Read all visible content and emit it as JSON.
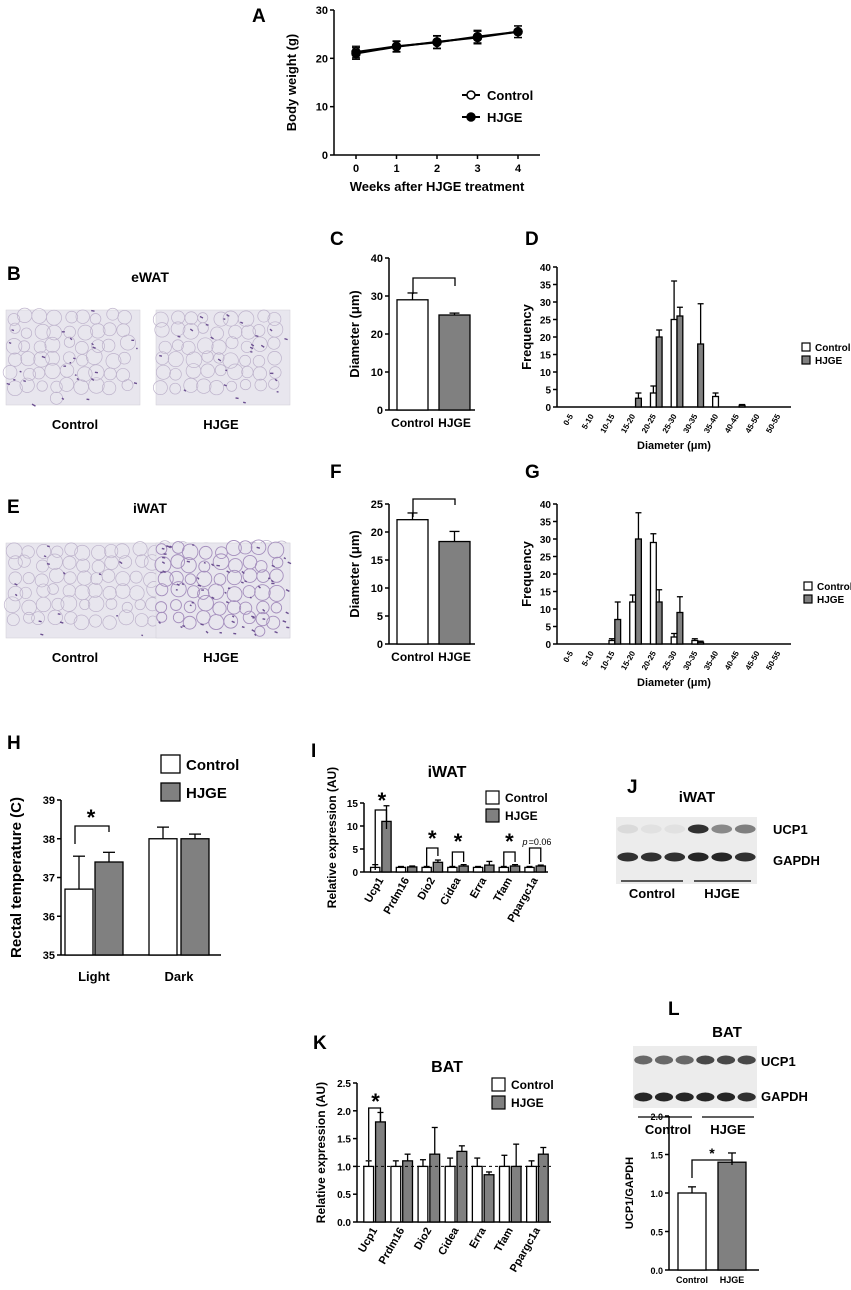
{
  "colors": {
    "control": "#ffffff",
    "hjge": "#808080",
    "axis": "#000000",
    "micro_bg": "#e8e6ee",
    "blot_bg": "#ececec"
  },
  "panels": {
    "A": {
      "letter": "A"
    },
    "B": {
      "letter": "B",
      "title": "eWAT",
      "left_label": "Control",
      "right_label": "HJGE"
    },
    "C": {
      "letter": "C"
    },
    "D": {
      "letter": "D"
    },
    "E": {
      "letter": "E",
      "title": "iWAT",
      "left_label": "Control",
      "right_label": "HJGE"
    },
    "F": {
      "letter": "F"
    },
    "G": {
      "letter": "G"
    },
    "H": {
      "letter": "H"
    },
    "I": {
      "letter": "I"
    },
    "J": {
      "letter": "J",
      "title": "iWAT",
      "band1": "UCP1",
      "band2": "GAPDH",
      "group1": "Control",
      "group2": "HJGE"
    },
    "K": {
      "letter": "K"
    },
    "L": {
      "letter": "L",
      "title": "BAT",
      "band1": "UCP1",
      "band2": "GAPDH",
      "group1": "Control",
      "group2": "HJGE"
    }
  },
  "chart_data": [
    {
      "id": "A",
      "type": "line",
      "xlabel": "Weeks after HJGE treatment",
      "ylabel": "Body weight (g)",
      "x": [
        0,
        1,
        2,
        3,
        4
      ],
      "xticks": [
        "0",
        "1",
        "2",
        "3",
        "4"
      ],
      "ylim": [
        0,
        30
      ],
      "yticks": [
        "0",
        "10",
        "20",
        "30"
      ],
      "series": [
        {
          "name": "Control",
          "values": [
            21.3,
            22.5,
            23.3,
            24.5,
            25.5
          ],
          "errors": [
            1.2,
            1.1,
            1.3,
            1.3,
            1.2
          ]
        },
        {
          "name": "HJGE",
          "values": [
            21.0,
            22.4,
            23.4,
            24.3,
            25.5
          ],
          "errors": [
            1.2,
            1.1,
            1.3,
            1.3,
            1.2
          ]
        }
      ],
      "legend": "right"
    },
    {
      "id": "C",
      "type": "bar",
      "ylabel": "Diameter (μm)",
      "categories": [
        "Control",
        "HJGE"
      ],
      "values": [
        29,
        25
      ],
      "errors": [
        1.8,
        0.5
      ],
      "ylim": [
        0,
        40
      ],
      "yticks": [
        "0",
        "10",
        "20",
        "30",
        "40"
      ],
      "sig": "*"
    },
    {
      "id": "D",
      "type": "bar",
      "xlabel": "Diameter (μm)",
      "ylabel": "Frequency",
      "categories": [
        "0-5",
        "5-10",
        "10-15",
        "15-20",
        "20-25",
        "25-30",
        "30-35",
        "35-40",
        "40-45",
        "45-50",
        "50-55"
      ],
      "ylim": [
        0,
        40
      ],
      "yticks": [
        "0",
        "5",
        "10",
        "15",
        "20",
        "25",
        "30",
        "35",
        "40"
      ],
      "series": [
        {
          "name": "Control",
          "values": [
            0,
            0,
            0,
            0,
            4,
            25,
            0,
            3,
            0,
            0,
            0
          ],
          "errors": [
            0,
            0,
            0,
            0,
            2,
            11,
            0,
            1,
            0,
            0,
            0
          ]
        },
        {
          "name": "HJGE",
          "values": [
            0,
            0,
            0,
            2.5,
            20,
            26,
            18,
            0,
            0.5,
            0,
            0
          ],
          "errors": [
            0,
            0,
            0,
            1.5,
            2,
            2.5,
            11.5,
            0,
            0.2,
            0,
            0
          ]
        }
      ],
      "legend": "right"
    },
    {
      "id": "F",
      "type": "bar",
      "ylabel": "Diameter (μm)",
      "categories": [
        "Control",
        "HJGE"
      ],
      "values": [
        22.2,
        18.3
      ],
      "errors": [
        1.2,
        1.8
      ],
      "ylim": [
        0,
        25
      ],
      "yticks": [
        "0",
        "5",
        "10",
        "15",
        "20",
        "25"
      ],
      "sig": "*"
    },
    {
      "id": "G",
      "type": "bar",
      "xlabel": "Diameter (μm)",
      "ylabel": "Frequency",
      "categories": [
        "0-5",
        "5-10",
        "10-15",
        "15-20",
        "20-25",
        "25-30",
        "30-35",
        "35-40",
        "40-45",
        "45-50",
        "50-55"
      ],
      "ylim": [
        0,
        40
      ],
      "yticks": [
        "0",
        "5",
        "10",
        "15",
        "20",
        "25",
        "30",
        "35",
        "40"
      ],
      "series": [
        {
          "name": "Control",
          "values": [
            0,
            0,
            1,
            12,
            29,
            2,
            1,
            0,
            0,
            0,
            0
          ],
          "errors": [
            0,
            0,
            0.5,
            2,
            2.5,
            1,
            0.5,
            0,
            0,
            0,
            0
          ]
        },
        {
          "name": "HJGE",
          "values": [
            0,
            0,
            7,
            30,
            12,
            9,
            0.5,
            0,
            0,
            0,
            0
          ],
          "errors": [
            0,
            0,
            5,
            7.5,
            3.5,
            4.5,
            0.3,
            0,
            0,
            0,
            0
          ]
        }
      ],
      "legend": "right"
    },
    {
      "id": "H",
      "type": "bar",
      "ylabel": "Rectal temperature (C)",
      "categories": [
        "Light",
        "Dark"
      ],
      "ylim": [
        35,
        39
      ],
      "yticks": [
        "35",
        "36",
        "37",
        "38",
        "39"
      ],
      "series": [
        {
          "name": "Control",
          "values": [
            36.7,
            38.0
          ],
          "errors": [
            0.85,
            0.3
          ]
        },
        {
          "name": "HJGE",
          "values": [
            37.4,
            38.0
          ],
          "errors": [
            0.25,
            0.12
          ]
        }
      ],
      "sig": "*",
      "legend": "top-right"
    },
    {
      "id": "I",
      "type": "bar",
      "title": "iWAT",
      "ylabel": "Relative expression (AU)",
      "categories": [
        "Ucp1",
        "Prdm16",
        "Dio2",
        "Cidea",
        "Erra",
        "Tfam",
        "Ppargc1a"
      ],
      "ylim": [
        0,
        15
      ],
      "yticks": [
        "0",
        "5",
        "10",
        "15"
      ],
      "series": [
        {
          "name": "Control",
          "values": [
            1,
            1,
            1,
            1,
            1,
            1,
            1
          ],
          "errors": [
            0.6,
            0.2,
            0.2,
            0.2,
            0.2,
            0.2,
            0.2
          ]
        },
        {
          "name": "HJGE",
          "values": [
            11,
            1.1,
            2.1,
            1.3,
            1.5,
            1.3,
            1.3
          ],
          "errors": [
            3.4,
            0.2,
            0.5,
            0.3,
            0.8,
            0.3,
            0.2
          ]
        }
      ],
      "sig_labels": [
        "*",
        "*",
        "*",
        "*"
      ],
      "p_label_prefix": "p",
      "p_label_value": "=0.06",
      "legend": "top-right"
    },
    {
      "id": "K",
      "type": "bar",
      "title": "BAT",
      "ylabel": "Relative expression (AU)",
      "categories": [
        "Ucp1",
        "Prdm16",
        "Dio2",
        "Cidea",
        "Erra",
        "Tfam",
        "Ppargc1a"
      ],
      "ylim": [
        0,
        2.5
      ],
      "yticks": [
        "0.0",
        "0.5",
        "1.0",
        "1.5",
        "2.0",
        "2.5"
      ],
      "series": [
        {
          "name": "Control",
          "values": [
            1,
            1,
            1,
            1,
            1,
            1,
            1
          ],
          "errors": [
            0.1,
            0.1,
            0.12,
            0.15,
            0.15,
            0.2,
            0.1
          ]
        },
        {
          "name": "HJGE",
          "values": [
            1.8,
            1.1,
            1.22,
            1.27,
            0.85,
            1.0,
            1.22
          ],
          "errors": [
            0.17,
            0.12,
            0.48,
            0.1,
            0.05,
            0.4,
            0.12
          ]
        }
      ],
      "sig": "*",
      "legend": "top-right"
    },
    {
      "id": "L",
      "type": "bar",
      "ylabel": "UCP1/GAPDH",
      "categories": [
        "Control",
        "HJGE"
      ],
      "values": [
        1.0,
        1.4
      ],
      "errors": [
        0.08,
        0.12
      ],
      "ylim": [
        0,
        2
      ],
      "yticks": [
        "0.0",
        "0.5",
        "1.0",
        "1.5",
        "2.0"
      ],
      "sig": "*"
    }
  ]
}
